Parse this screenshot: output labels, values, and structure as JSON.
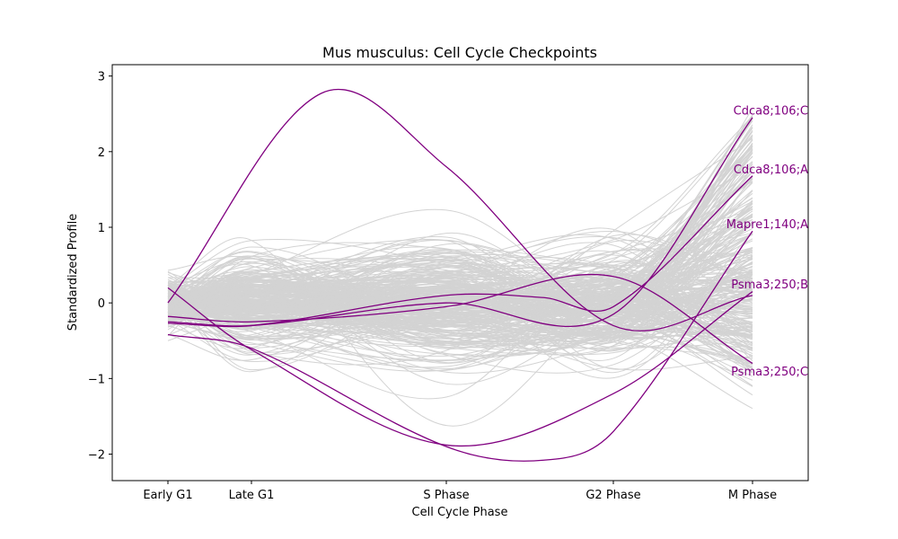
{
  "chart_data": {
    "type": "line",
    "title": "Mus musculus: Cell Cycle Checkpoints",
    "xlabel": "Cell Cycle Phase",
    "ylabel": "Standardized Profile",
    "categories": [
      "Early G1",
      "Late G1",
      "S Phase",
      "G2 Phase",
      "M Phase"
    ],
    "x_positions": [
      0,
      0.6,
      2.0,
      3.2,
      4.2
    ],
    "xlim": [
      -0.4,
      4.6
    ],
    "ylim": [
      -2.35,
      3.15
    ],
    "yticks": [
      -2,
      -1,
      0,
      1,
      2,
      3
    ],
    "ytick_labels": [
      "−2",
      "−1",
      "0",
      "1",
      "2",
      "3"
    ],
    "grid": false,
    "background_color": "#d3d3d3",
    "highlight_color": "#800080",
    "background_series_count": 300,
    "highlighted_series": [
      {
        "name": "Cdca8;106;C",
        "points": [
          [
            0,
            -0.25
          ],
          [
            0.6,
            -0.3
          ],
          [
            2.0,
            0.0
          ],
          [
            3.2,
            -0.15
          ],
          [
            4.2,
            2.45
          ]
        ]
      },
      {
        "name": "Cdca8;106;A",
        "points": [
          [
            0,
            -0.27
          ],
          [
            0.6,
            -0.3
          ],
          [
            2.0,
            0.1
          ],
          [
            2.7,
            0.07
          ],
          [
            3.2,
            -0.05
          ],
          [
            4.2,
            1.68
          ]
        ]
      },
      {
        "name": "Mapre1;140;A",
        "points": [
          [
            0,
            -0.42
          ],
          [
            0.6,
            -0.6
          ],
          [
            2.0,
            -1.9
          ],
          [
            2.7,
            -2.08
          ],
          [
            3.2,
            -1.7
          ],
          [
            4.2,
            0.95
          ]
        ]
      },
      {
        "name": "Psma3;250;B",
        "points": [
          [
            0,
            0.2
          ],
          [
            0.6,
            -0.62
          ],
          [
            2.0,
            -1.88
          ],
          [
            3.2,
            -1.2
          ],
          [
            4.2,
            0.15
          ]
        ]
      },
      {
        "name": "Psma3;250;C",
        "points": [
          [
            0,
            -0.18
          ],
          [
            0.6,
            -0.25
          ],
          [
            2.0,
            -0.05
          ],
          [
            3.2,
            0.35
          ],
          [
            4.2,
            -0.8
          ]
        ]
      },
      {
        "name": "",
        "points": [
          [
            0,
            0.0
          ],
          [
            1.1,
            2.77
          ],
          [
            2.0,
            1.8
          ],
          [
            3.2,
            -0.3
          ],
          [
            4.2,
            0.1
          ]
        ]
      }
    ],
    "labels": [
      {
        "text": "Cdca8;106;C",
        "x": 4.2,
        "y": 2.55
      },
      {
        "text": "Cdca8;106;A",
        "x": 4.2,
        "y": 1.77
      },
      {
        "text": "Mapre1;140;A",
        "x": 4.2,
        "y": 1.05
      },
      {
        "text": "Psma3;250;B",
        "x": 4.2,
        "y": 0.25
      },
      {
        "text": "Psma3;250;C",
        "x": 4.2,
        "y": -0.9
      }
    ]
  }
}
